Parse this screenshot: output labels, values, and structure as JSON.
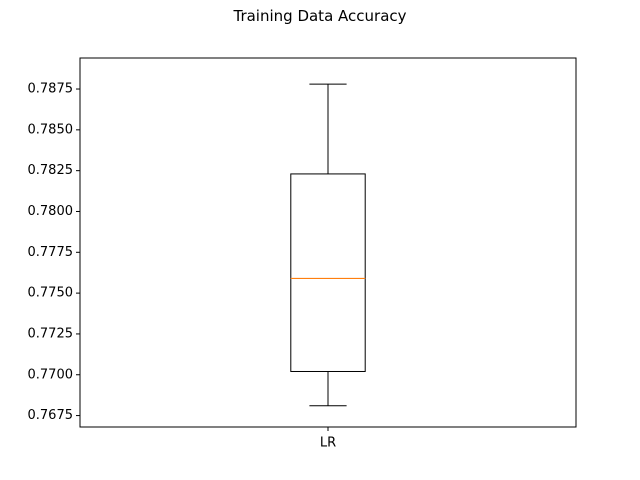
{
  "chart_data": {
    "type": "box",
    "title": "Training Data Accuracy",
    "xlabel": "",
    "ylabel": "",
    "categories": [
      "LR"
    ],
    "boxes": [
      {
        "label": "LR",
        "whisker_low": 0.7681,
        "q1": 0.7702,
        "median": 0.7759,
        "q3": 0.7823,
        "whisker_high": 0.7878
      }
    ],
    "ylim": [
      0.7668,
      0.7894
    ],
    "yticks": [
      0.7675,
      0.77,
      0.7725,
      0.775,
      0.7775,
      0.78,
      0.7825,
      0.785,
      0.7875
    ],
    "ytick_labels": [
      "0.7675",
      "0.7700",
      "0.7725",
      "0.7750",
      "0.7775",
      "0.7800",
      "0.7825",
      "0.7850",
      "0.7875"
    ],
    "grid": false,
    "colors": {
      "box": "#000000",
      "median": "#ff7f0e"
    }
  }
}
